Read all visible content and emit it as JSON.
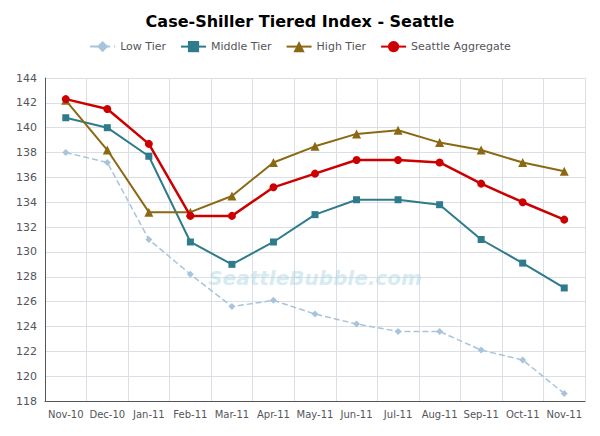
{
  "chart_data": {
    "type": "line",
    "title": "Case-Shiller Tiered Index - Seattle",
    "categories": [
      "Nov-10",
      "Dec-10",
      "Jan-11",
      "Feb-11",
      "Mar-11",
      "Apr-11",
      "May-11",
      "Jun-11",
      "Jul-11",
      "Aug-11",
      "Sep-11",
      "Oct-11",
      "Nov-11"
    ],
    "series": [
      {
        "name": "Low Tier",
        "color": "#a8c4dc",
        "marker": "diamond",
        "line_style": "dashed",
        "values": [
          138.0,
          137.2,
          131.0,
          128.2,
          125.6,
          126.1,
          125.0,
          124.2,
          123.6,
          123.6,
          122.1,
          121.3,
          118.6
        ]
      },
      {
        "name": "Middle Tier",
        "color": "#2e7b8c",
        "marker": "square",
        "line_style": "solid",
        "values": [
          140.8,
          140.0,
          137.7,
          130.8,
          129.0,
          130.8,
          133.0,
          134.2,
          134.2,
          133.8,
          131.0,
          129.1,
          127.1
        ]
      },
      {
        "name": "High Tier",
        "color": "#8b6914",
        "marker": "triangle",
        "line_style": "solid",
        "values": [
          142.2,
          138.2,
          133.2,
          133.2,
          134.5,
          137.2,
          138.5,
          139.5,
          139.8,
          138.8,
          138.2,
          137.2,
          136.5
        ]
      },
      {
        "name": "Seattle Aggregate",
        "color": "#cc0000",
        "marker": "circle",
        "line_style": "solid",
        "values": [
          142.3,
          141.5,
          138.7,
          132.9,
          132.9,
          135.2,
          136.3,
          137.4,
          137.4,
          137.2,
          135.5,
          134.0,
          132.6
        ]
      }
    ],
    "ylim": [
      118,
      144
    ],
    "yticks": [
      118,
      120,
      122,
      124,
      126,
      128,
      130,
      132,
      134,
      136,
      138,
      140,
      142,
      144
    ],
    "grid": true,
    "legend": "top",
    "annotations": [
      "SeattleBubble.com"
    ]
  }
}
